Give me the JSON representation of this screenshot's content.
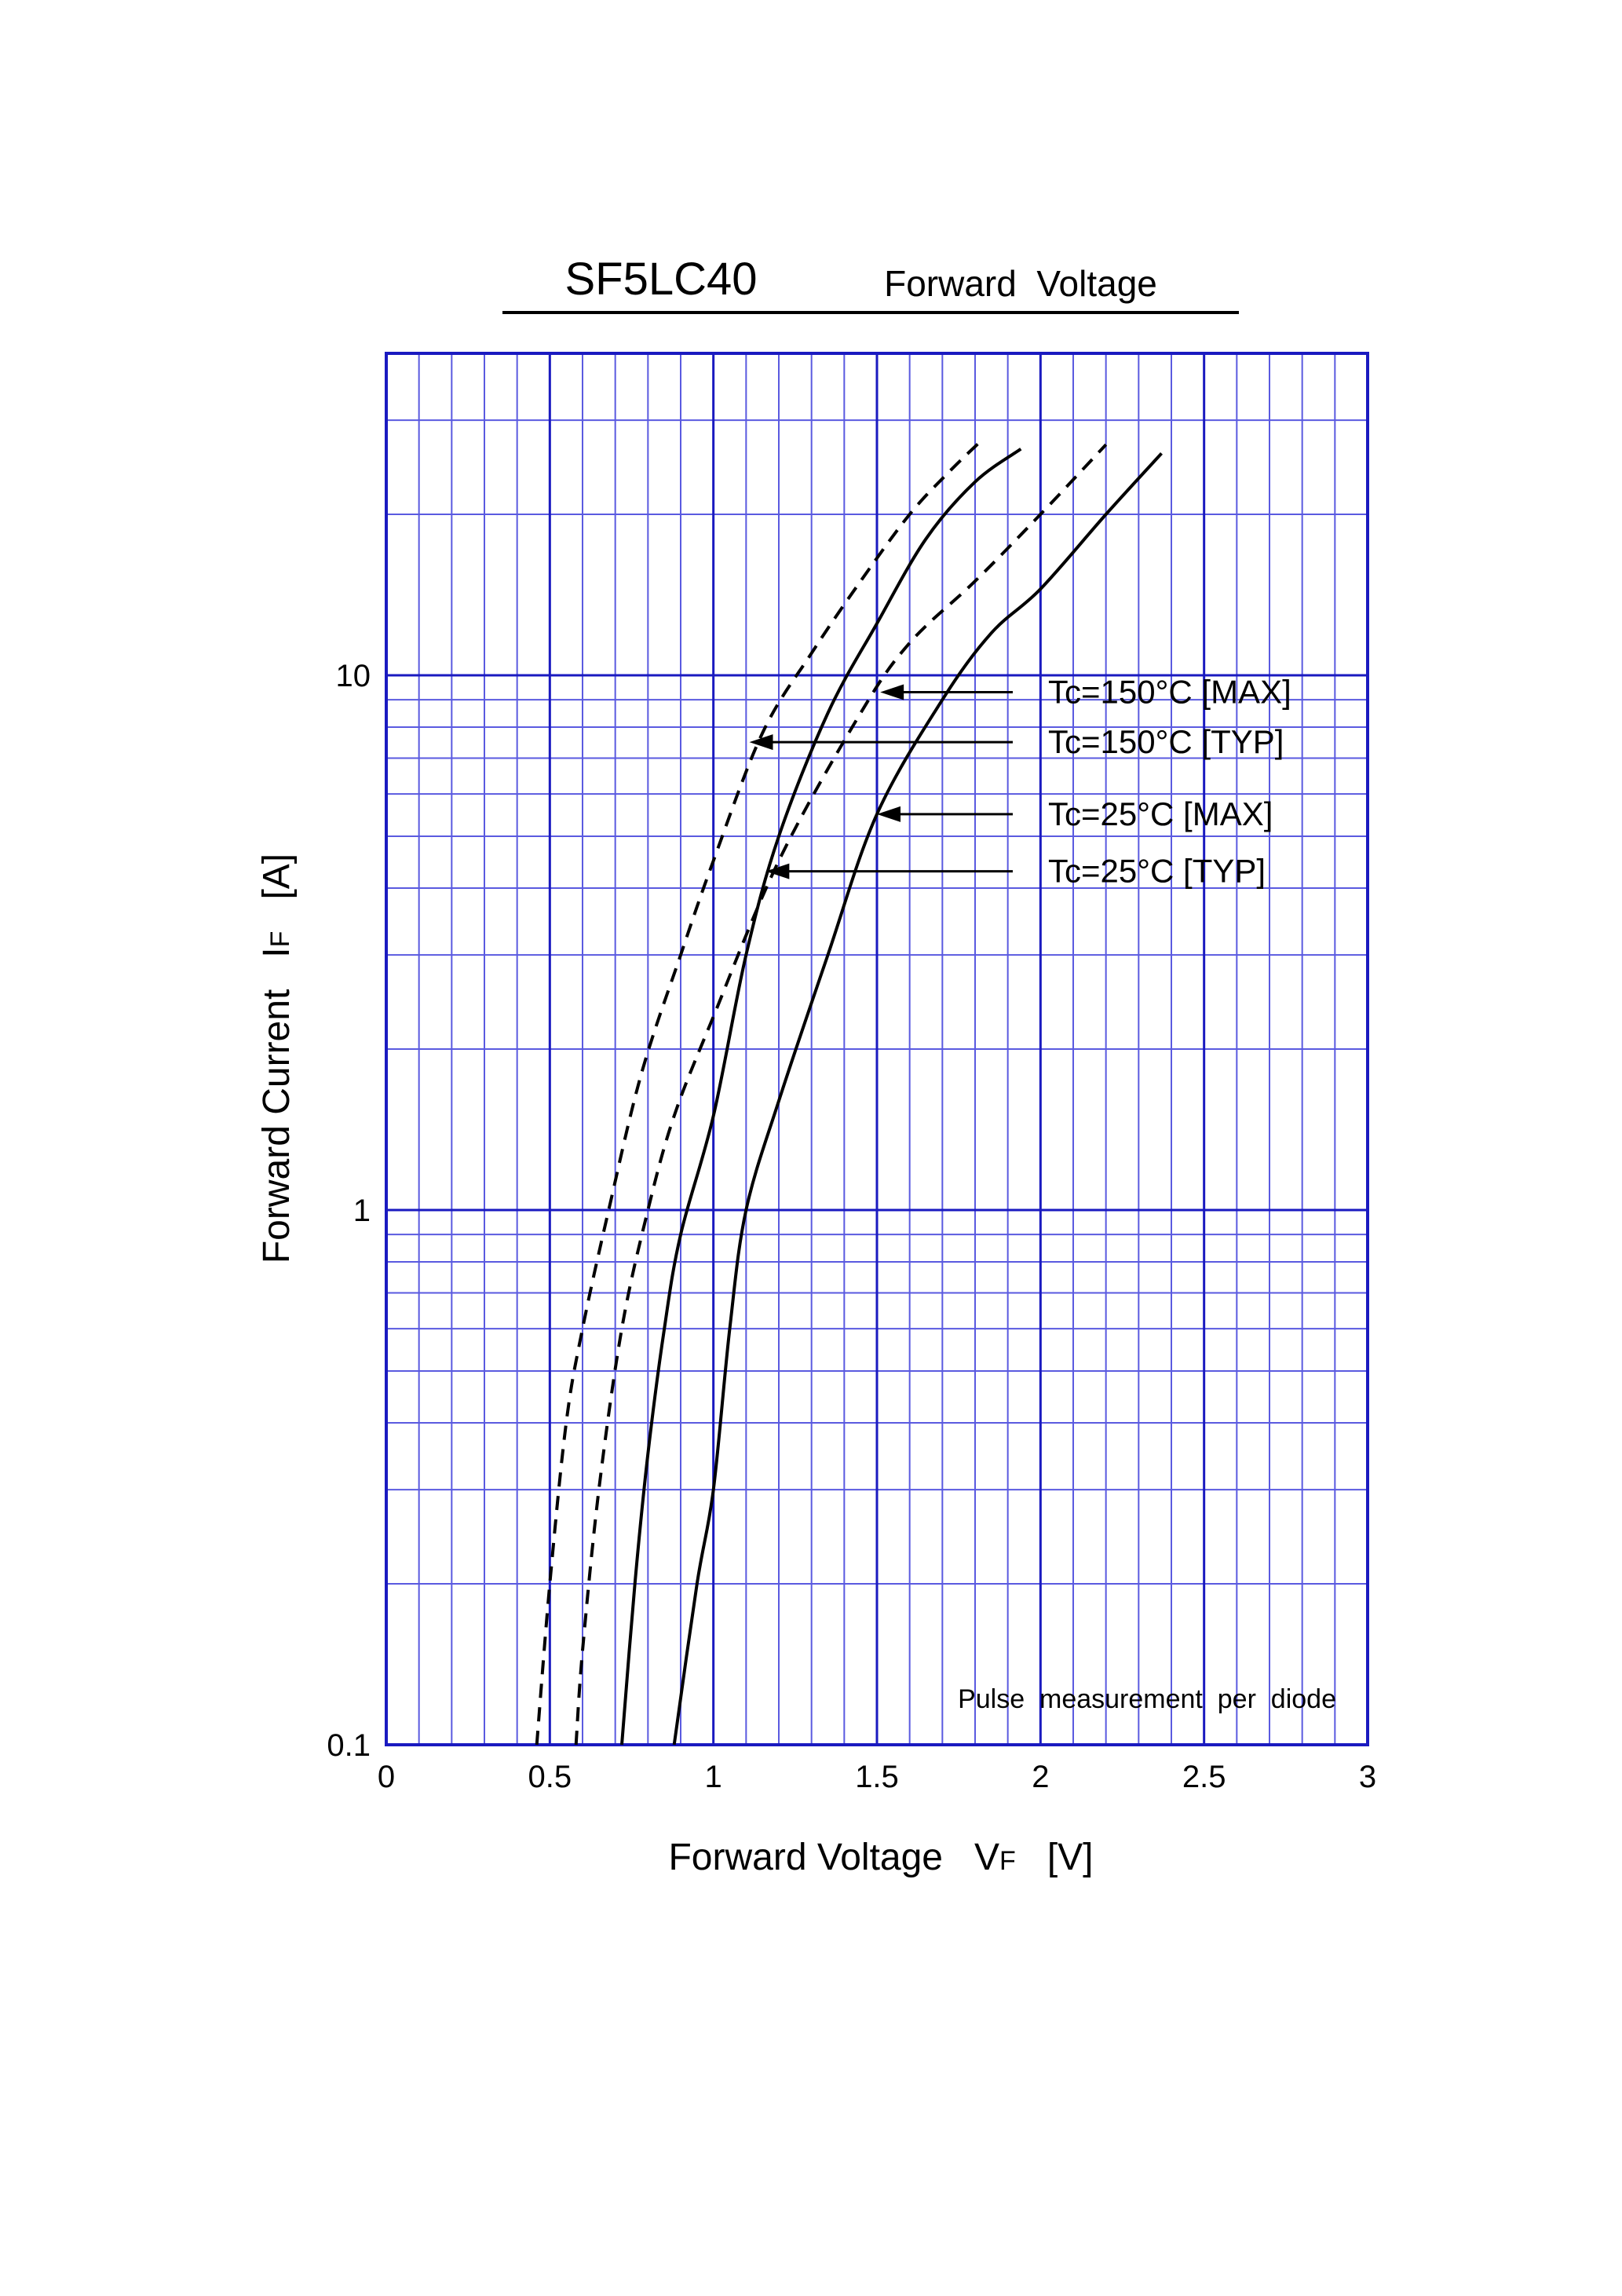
{
  "chart_data": {
    "type": "line",
    "title_part": "SF5LC40",
    "subtitle": "Forward  Voltage",
    "xlabel": "Forward Voltage",
    "xlabel_symbol": "V",
    "xlabel_sub": "F",
    "xlabel_unit": "[V]",
    "ylabel": "Forward Current",
    "ylabel_symbol": "I",
    "ylabel_sub": "F",
    "ylabel_unit": "[A]",
    "xlim": [
      0,
      3
    ],
    "ylim": [
      0.1,
      40
    ],
    "yscale": "log",
    "grid": true,
    "xticks": [
      {
        "v": 0,
        "label": "0"
      },
      {
        "v": 0.5,
        "label": "0.5"
      },
      {
        "v": 1,
        "label": "1"
      },
      {
        "v": 1.5,
        "label": "1.5"
      },
      {
        "v": 2,
        "label": "2"
      },
      {
        "v": 2.5,
        "label": "2.5"
      },
      {
        "v": 3,
        "label": "3"
      }
    ],
    "yticks": [
      {
        "v": 0.1,
        "label": "0.1"
      },
      {
        "v": 1,
        "label": "1"
      },
      {
        "v": 10,
        "label": "10"
      }
    ],
    "annotation": "Pulse  measurement  per  diode",
    "series": [
      {
        "name": "Tc=150°C [TYP]",
        "style": "dashed",
        "label_y": 7.5,
        "arrow_end": [
          1.11,
          7.5
        ],
        "points": [
          [
            0.46,
            0.1
          ],
          [
            0.5,
            0.2
          ],
          [
            0.55,
            0.4
          ],
          [
            0.6,
            0.6
          ],
          [
            0.68,
            1.0
          ],
          [
            0.78,
            1.8
          ],
          [
            0.9,
            3.0
          ],
          [
            1.0,
            4.5
          ],
          [
            1.15,
            7.8
          ],
          [
            1.3,
            11.0
          ],
          [
            1.45,
            15.0
          ],
          [
            1.6,
            20.0
          ],
          [
            1.72,
            24.0
          ],
          [
            1.82,
            27.5
          ]
        ]
      },
      {
        "name": "Tc=150°C [MAX]",
        "style": "dashed",
        "label_y": 9.3,
        "arrow_end": [
          1.51,
          9.3
        ],
        "points": [
          [
            0.58,
            0.1
          ],
          [
            0.6,
            0.15
          ],
          [
            0.65,
            0.3
          ],
          [
            0.72,
            0.6
          ],
          [
            0.8,
            1.0
          ],
          [
            0.88,
            1.5
          ],
          [
            1.0,
            2.3
          ],
          [
            1.2,
            4.5
          ],
          [
            1.45,
            8.5
          ],
          [
            1.6,
            11.5
          ],
          [
            1.8,
            15.0
          ],
          [
            2.0,
            20.0
          ],
          [
            2.2,
            27.0
          ]
        ]
      },
      {
        "name": "Tc=25°C [MAX]",
        "style": "solid",
        "label_y": 5.5,
        "arrow_end": [
          1.5,
          5.5
        ],
        "points": [
          [
            0.88,
            0.1
          ],
          [
            0.95,
            0.2
          ],
          [
            1.0,
            0.3
          ],
          [
            1.05,
            0.6
          ],
          [
            1.1,
            1.0
          ],
          [
            1.2,
            1.6
          ],
          [
            1.35,
            3.0
          ],
          [
            1.5,
            5.5
          ],
          [
            1.7,
            9.0
          ],
          [
            1.85,
            12.0
          ],
          [
            2.0,
            14.5
          ],
          [
            2.2,
            20.0
          ],
          [
            2.37,
            26.0
          ]
        ]
      },
      {
        "name": "Tc=25°C [TYP]",
        "style": "solid",
        "label_y": 4.3,
        "arrow_end": [
          1.16,
          4.3
        ],
        "points": [
          [
            0.72,
            0.1
          ],
          [
            0.76,
            0.2
          ],
          [
            0.8,
            0.35
          ],
          [
            0.85,
            0.6
          ],
          [
            0.9,
            0.9
          ],
          [
            1.0,
            1.5
          ],
          [
            1.1,
            3.0
          ],
          [
            1.2,
            5.0
          ],
          [
            1.35,
            8.5
          ],
          [
            1.5,
            12.5
          ],
          [
            1.65,
            18.0
          ],
          [
            1.8,
            23.0
          ],
          [
            1.94,
            26.5
          ]
        ]
      }
    ]
  }
}
